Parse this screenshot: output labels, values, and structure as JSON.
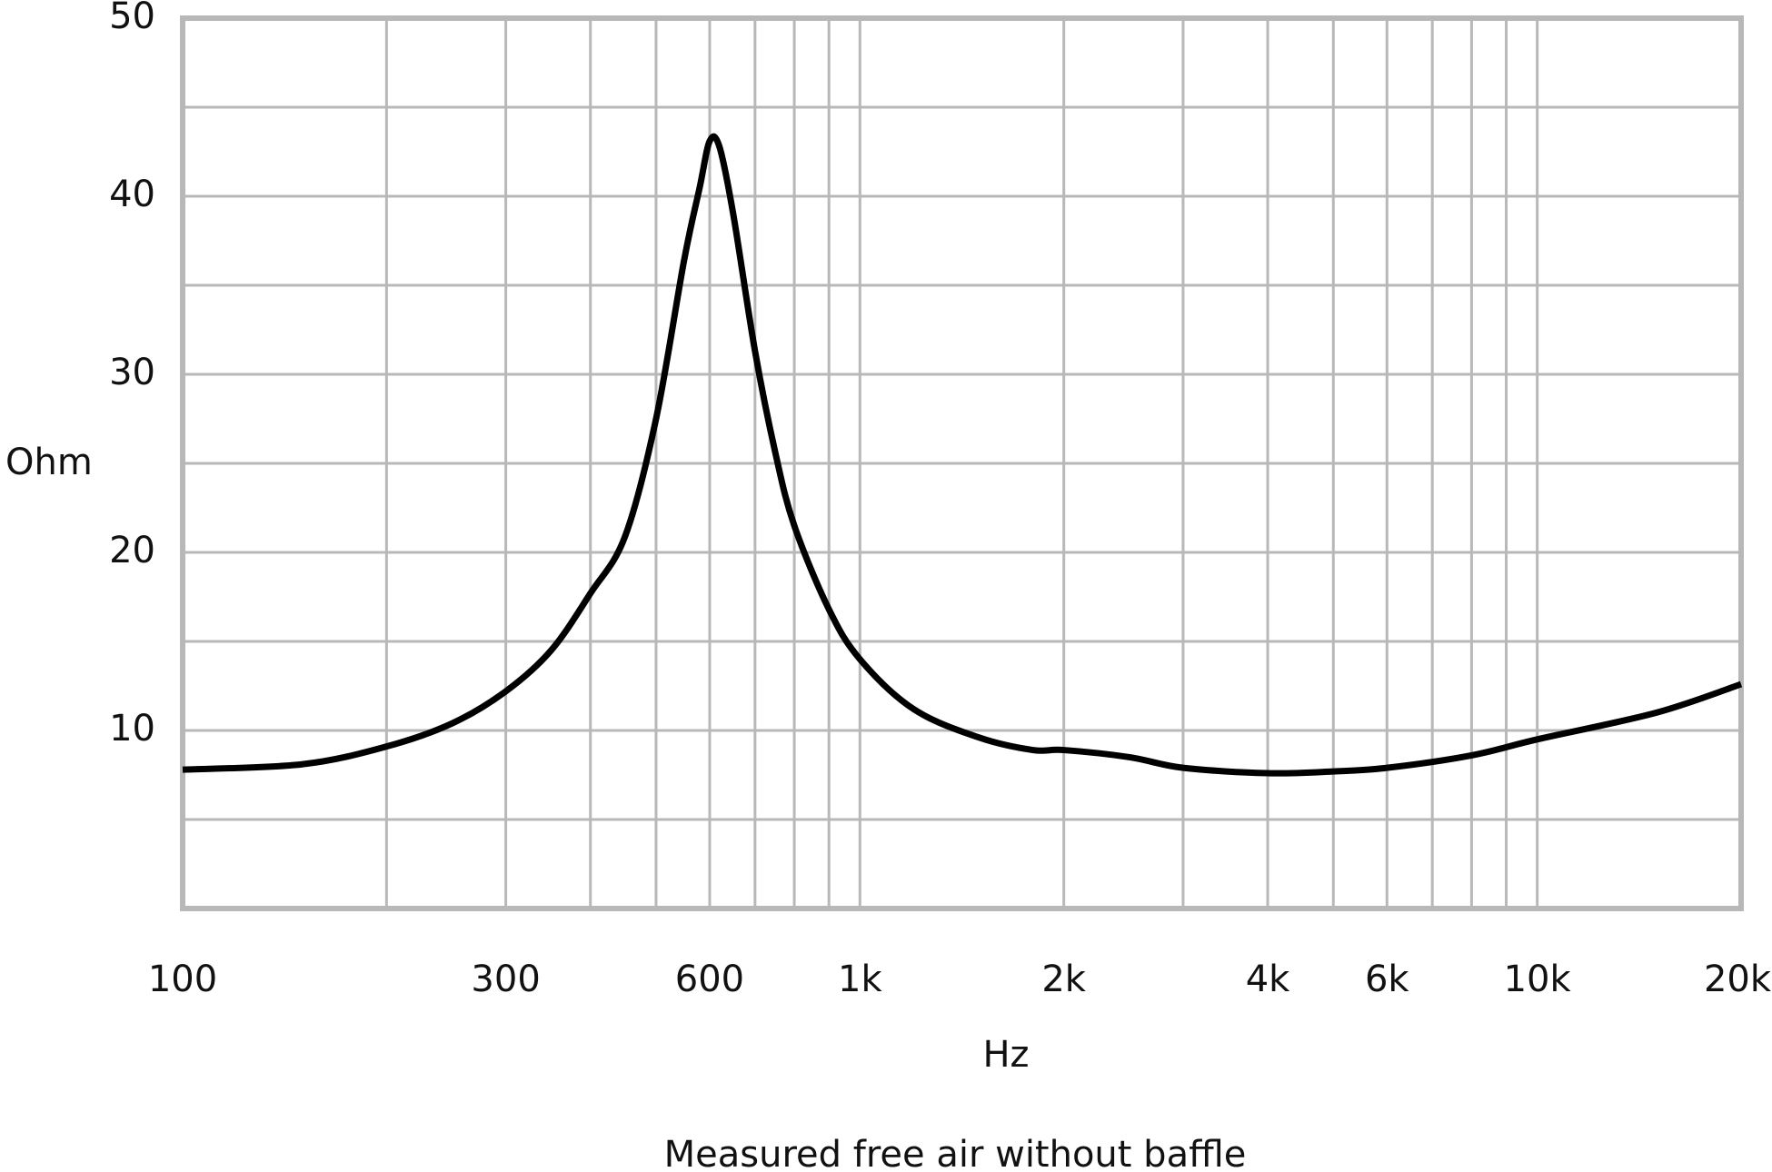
{
  "chart_data": {
    "type": "line",
    "y_label": "Ohm",
    "x_label": "Hz",
    "note": "Measured free air without baffle",
    "log_x": true,
    "grid": true,
    "xlim": [
      100,
      20000
    ],
    "ylim": [
      0,
      50
    ],
    "xticks": [
      100,
      300,
      600,
      {
        "value": 1000,
        "label": "1k"
      },
      {
        "value": 2000,
        "label": "2k"
      },
      {
        "value": 4000,
        "label": "4k"
      },
      {
        "value": 6000,
        "label": "6k"
      },
      {
        "value": 10000,
        "label": "10k"
      },
      {
        "value": 20000,
        "label": "20k"
      }
    ],
    "x_minor_grid": [
      200,
      400,
      500,
      700,
      800,
      900,
      3000,
      5000,
      7000,
      8000,
      9000
    ],
    "yticks": [
      10,
      20,
      30,
      40,
      50
    ],
    "y_minor_grid": [
      5,
      15,
      25,
      35,
      45
    ],
    "x": [
      100,
      150,
      200,
      250,
      300,
      350,
      400,
      450,
      500,
      550,
      580,
      600,
      620,
      650,
      700,
      750,
      800,
      900,
      1000,
      1200,
      1500,
      1800,
      2000,
      2500,
      3000,
      4000,
      5000,
      6000,
      8000,
      10000,
      15000,
      20000
    ],
    "series": [
      {
        "color": "#000000",
        "values": [
          7.8,
          8.1,
          9.1,
          10.4,
          12.2,
          14.5,
          17.7,
          20.9,
          27.5,
          36.4,
          40.5,
          43.1,
          42.8,
          39,
          31.3,
          25.6,
          21.5,
          16.8,
          14.0,
          11.2,
          9.6,
          8.9,
          8.9,
          8.5,
          7.9,
          7.6,
          7.7,
          7.9,
          8.6,
          9.5,
          11.0,
          12.6
        ]
      }
    ]
  }
}
